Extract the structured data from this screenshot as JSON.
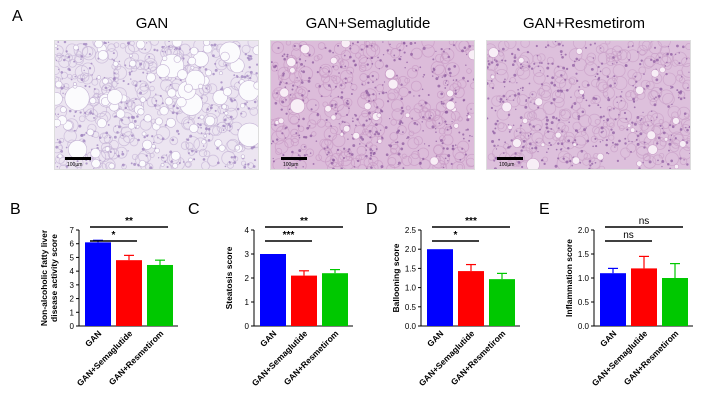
{
  "panel_a": {
    "label": "A",
    "images": [
      {
        "title": "GAN",
        "scale": "100µm",
        "fill": "#ece5f1",
        "tissue": "#c4b3d5",
        "cell": "#9d82bd",
        "vacuole": "#fbfbfd"
      },
      {
        "title": "GAN+Semaglutide",
        "scale": "100µm",
        "fill": "#dcbcda",
        "tissue": "#c79ac5",
        "cell": "#8e5b9f",
        "vacuole": "#f8eef6"
      },
      {
        "title": "GAN+Resmetirom",
        "scale": "100µm",
        "fill": "#ddc0dc",
        "tissue": "#c99fc8",
        "cell": "#8d5ca2",
        "vacuole": "#f7eef6"
      }
    ]
  },
  "chart_data": [
    {
      "panel": "B",
      "type": "bar",
      "categories": [
        "GAN",
        "GAN+Semaglutide",
        "GAN+Resmetirom"
      ],
      "values": [
        6.1,
        4.8,
        4.45
      ],
      "errors": [
        0.15,
        0.35,
        0.35
      ],
      "colors": [
        "#0000ff",
        "#ff0000",
        "#00c800"
      ],
      "ylabel": "Non-alcoholic fatty liver\ndisease activity score",
      "ylim": [
        0,
        7
      ],
      "yticks": [
        "0",
        "1",
        "2",
        "3",
        "4",
        "5",
        "6",
        "7"
      ],
      "yticks_values": [
        0,
        1,
        2,
        3,
        4,
        5,
        6,
        7
      ],
      "brackets": [
        {
          "from": 0,
          "to": 1,
          "label": "*"
        },
        {
          "from": 0,
          "to": 2,
          "label": "**"
        }
      ]
    },
    {
      "panel": "C",
      "type": "bar",
      "categories": [
        "GAN",
        "GAN+Semaglutide",
        "GAN+Resmetirom"
      ],
      "values": [
        3.0,
        2.1,
        2.2
      ],
      "errors": [
        0,
        0.2,
        0.15
      ],
      "colors": [
        "#0000ff",
        "#ff0000",
        "#00c800"
      ],
      "ylabel": "Steatosis score",
      "ylim": [
        0,
        4
      ],
      "yticks": [
        "0",
        "1",
        "2",
        "3",
        "4"
      ],
      "yticks_values": [
        0,
        1,
        2,
        3,
        4
      ],
      "brackets": [
        {
          "from": 0,
          "to": 1,
          "label": "***"
        },
        {
          "from": 0,
          "to": 2,
          "label": "**"
        }
      ]
    },
    {
      "panel": "D",
      "type": "bar",
      "categories": [
        "GAN",
        "GAN+Semaglutide",
        "GAN+Resmetirom"
      ],
      "values": [
        2.0,
        1.43,
        1.22
      ],
      "errors": [
        0,
        0.17,
        0.15
      ],
      "colors": [
        "#0000ff",
        "#ff0000",
        "#00c800"
      ],
      "ylabel": "Ballooning score",
      "ylim": [
        0,
        2.5
      ],
      "yticks": [
        "0.0",
        "0.5",
        "1.0",
        "1.5",
        "2.0",
        "2.5"
      ],
      "yticks_values": [
        0,
        0.5,
        1,
        1.5,
        2,
        2.5
      ],
      "brackets": [
        {
          "from": 0,
          "to": 1,
          "label": "*"
        },
        {
          "from": 0,
          "to": 2,
          "label": "***"
        }
      ]
    },
    {
      "panel": "E",
      "type": "bar",
      "categories": [
        "GAN",
        "GAN+Semaglutide",
        "GAN+Resmetirom"
      ],
      "values": [
        1.1,
        1.2,
        1.0
      ],
      "errors": [
        0.1,
        0.25,
        0.3
      ],
      "colors": [
        "#0000ff",
        "#ff0000",
        "#00c800"
      ],
      "ylabel": "Inflammation score",
      "ylim": [
        0,
        2
      ],
      "yticks": [
        "0.0",
        "0.5",
        "1.0",
        "1.5",
        "2.0"
      ],
      "yticks_values": [
        0,
        0.5,
        1,
        1.5,
        2
      ],
      "brackets": [
        {
          "from": 0,
          "to": 1,
          "label": "ns"
        },
        {
          "from": 0,
          "to": 2,
          "label": "ns"
        }
      ]
    }
  ]
}
